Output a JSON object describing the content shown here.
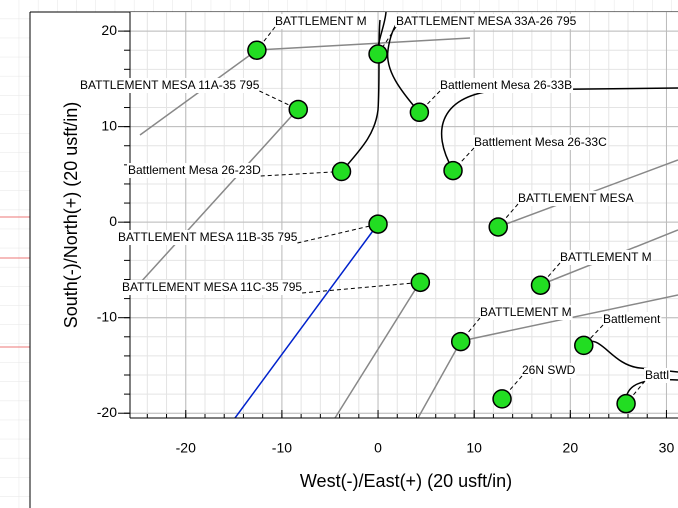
{
  "chart_data": {
    "type": "scatter",
    "xlabel": "West(-)/East(+) (20 usft/in)",
    "ylabel": "South(-)/North(+) (20 usft/in)",
    "xlim": [
      -25.8,
      31.2
    ],
    "ylim": [
      -20.5,
      22
    ],
    "xticks": [
      -20,
      -10,
      0,
      10,
      20,
      30
    ],
    "yticks": [
      -20,
      -10,
      0,
      10,
      20
    ],
    "grid": true,
    "color": "#22dd22",
    "x": [
      -12.6,
      0,
      -8.3,
      4.3,
      -3.8,
      7.8,
      0,
      12.5,
      4.4,
      16.9,
      8.6,
      21.4,
      12.9,
      25.8
    ],
    "y": [
      18,
      17.6,
      11.8,
      11.5,
      5.3,
      5.4,
      -0.2,
      -0.5,
      -6.3,
      -6.6,
      -12.5,
      -12.9,
      -18.5,
      -19
    ],
    "annotations": [
      "BATTLEMENT M",
      "BATTLEMENT MESA 33A-26 795",
      "BATTLEMENT MESA 11A-35 795",
      "Battlement Mesa 26-33B",
      "Battlement Mesa 26-33C",
      "Battlement Mesa 26-23D",
      "BATTLEMENT MESA",
      "BATTLEMENT MESA 11B-35 795",
      "BATTLEMENT M",
      "BATTLEMENT MESA 11C-35 795",
      "BATTLEMENT M",
      "Battlement",
      "26N SWD",
      "Battl"
    ]
  }
}
